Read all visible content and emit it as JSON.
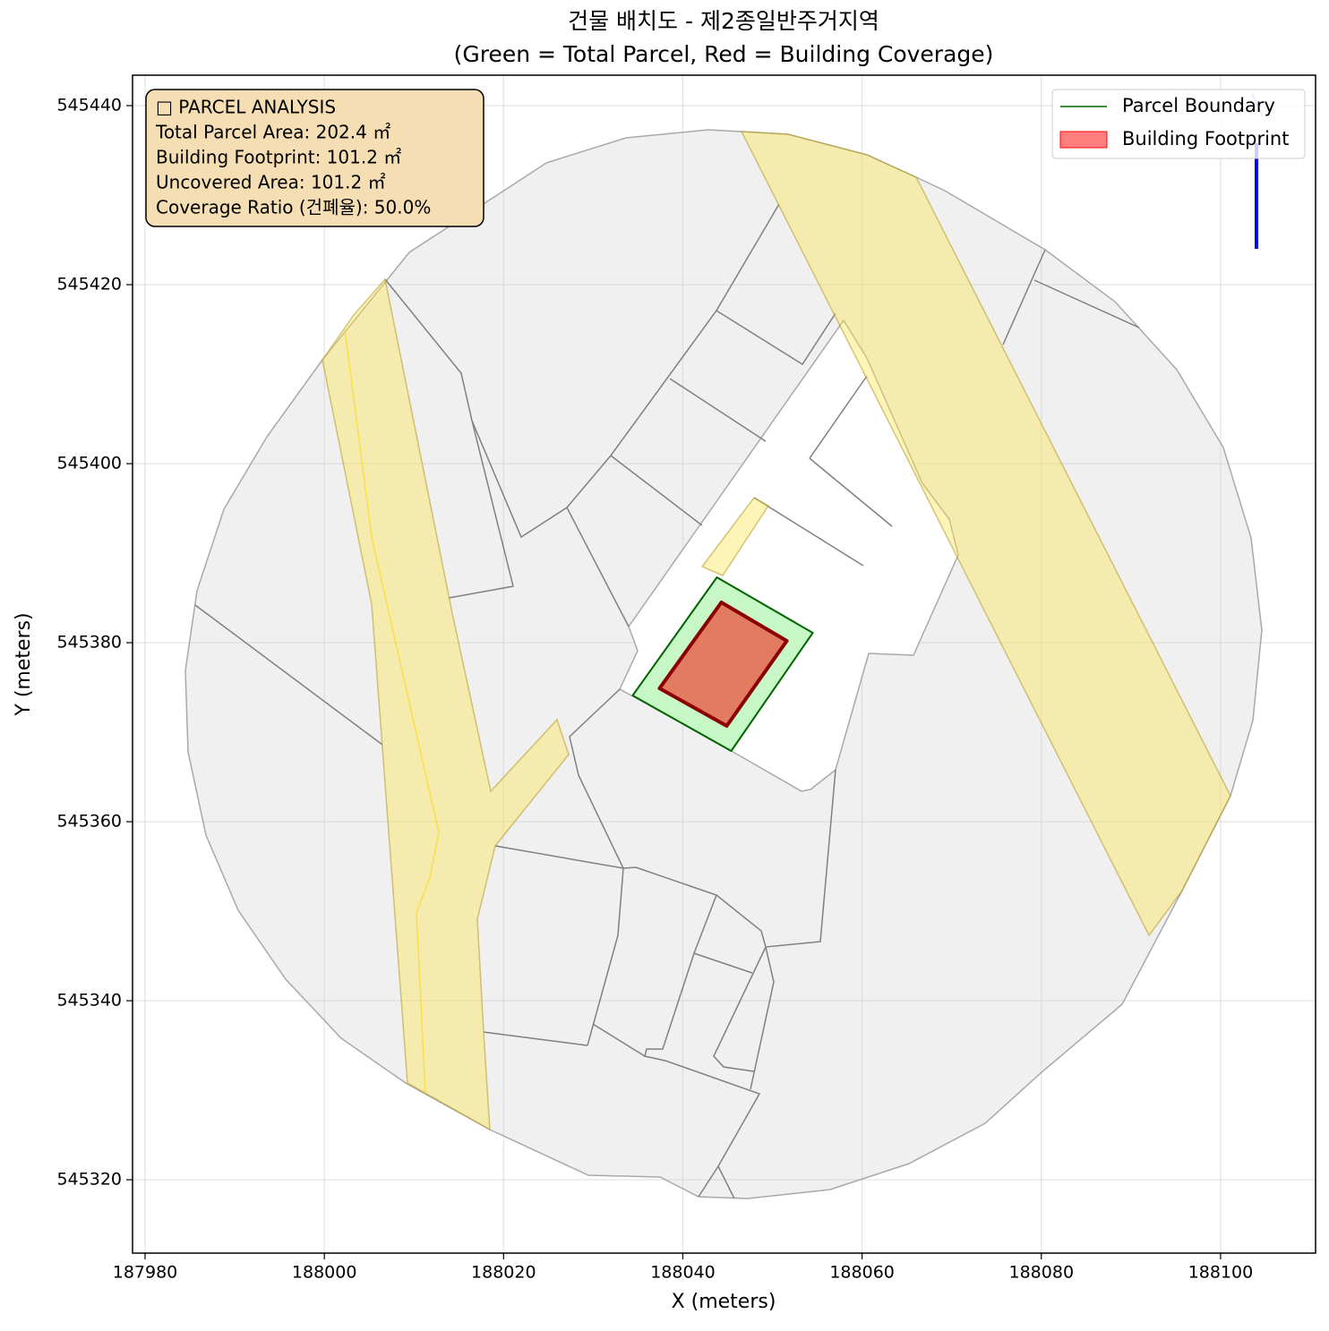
{
  "chart_data": {
    "type": "map",
    "title": [
      "건물 배치도 - 제2종일반주거지역",
      "(Green = Total Parcel, Red = Building Coverage)"
    ],
    "xlabel": "X (meters)",
    "ylabel": "Y (meters)",
    "xlim": [
      187978.6,
      188110.6
    ],
    "ylim": [
      545311.8,
      545443.4
    ],
    "xticks": [
      187980,
      188000,
      188020,
      188040,
      188060,
      188080,
      188100
    ],
    "yticks": [
      545320,
      545340,
      545360,
      545380,
      545400,
      545420,
      545440
    ],
    "grid": true,
    "legend": "upper right",
    "series": [
      {
        "name": "Parcel Boundary",
        "color": "#006400",
        "fill": "#90ee90",
        "legend_marker": "line",
        "x": [
          188043.8,
          188054.5,
          188045.4,
          188034.4
        ],
        "y": [
          545387.3,
          545381.1,
          545367.9,
          545374.1
        ]
      },
      {
        "name": "Building Footprint",
        "color": "#8b0000",
        "fill": "#ff0000",
        "legend_marker": "patch",
        "x": [
          188044.3,
          188051.6,
          188044.9,
          188037.4
        ],
        "y": [
          545384.5,
          545380.2,
          545370.7,
          545374.9
        ]
      }
    ],
    "annotation": [
      "□ PARCEL ANALYSIS",
      "Total Parcel Area: 202.4 ㎡",
      "Building Footprint: 101.2 ㎡",
      "Uncovered Area: 101.2 ㎡",
      "Coverage Ratio (건폐율): 50.0%"
    ]
  }
}
